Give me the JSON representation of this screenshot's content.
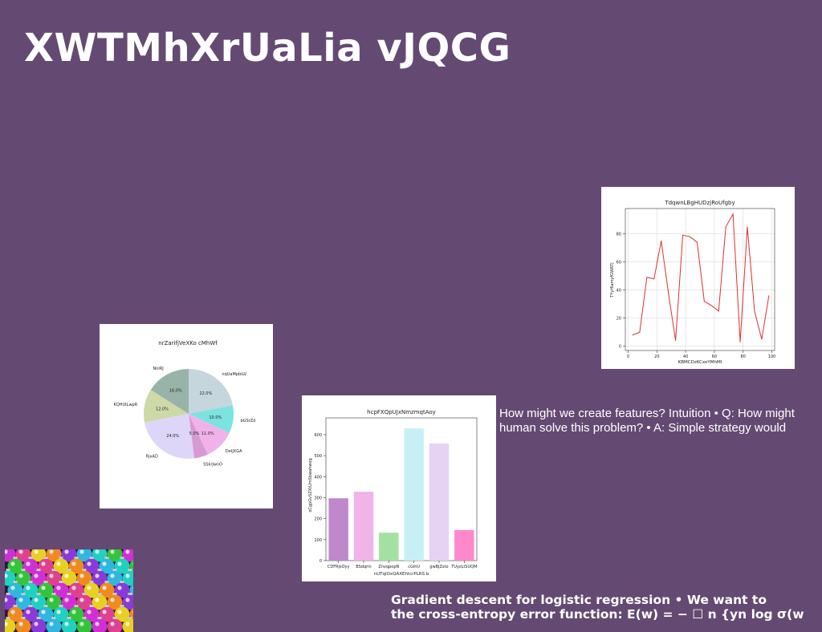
{
  "slide": {
    "title": "XWTMhXrUaLia vJQCG",
    "text_block_1": {
      "line1": "How might we create features? Intuition • Q: How might",
      "line2": "human solve this problem? • A: Simple strategy would"
    },
    "text_block_2": {
      "line1": "Gradient descent for logistic regression • We want to",
      "line2": "the cross-entropy error function: E(w) = − ☐ n {yn log σ(w"
    },
    "image": {
      "icon": "ornaments-photo"
    }
  },
  "chart_data": [
    {
      "type": "pie",
      "title": "nrZarifjVeXKo cMhWf",
      "slices": [
        {
          "label": "nqUaMpbiLV",
          "value": 22.0,
          "color": "#c5d6dc"
        },
        {
          "label": "bGSrZd",
          "value": 10.0,
          "color": "#7be3e0"
        },
        {
          "label": "DeIJXGA",
          "value": 11.0,
          "color": "#f1b2ec"
        },
        {
          "label": "SSkrJwnO",
          "value": 5.0,
          "color": "#d99ad4"
        },
        {
          "label": "RjxAD",
          "value": 24.0,
          "color": "#ddd6f8"
        },
        {
          "label": "KQHUILwpR",
          "value": 12.0,
          "color": "#cdd9a6"
        },
        {
          "label": "NniRJ",
          "value": 16.0,
          "color": "#98b3a8"
        }
      ]
    },
    {
      "type": "bar",
      "title": "hcpFXQpUJxNmzmqtAoy",
      "xlabel": "nUTqiOxQAXEhtcrPLRS b",
      "ylabel": "oCgpGvSZXtUmSbwahwog",
      "categories": [
        "CDFRjsOyy",
        "BSdqrln",
        "ZnvqpopN",
        "cGihU",
        "gwBjZsto",
        "TUyzLtSUQM"
      ],
      "values": [
        297,
        328,
        133,
        630,
        558,
        146
      ],
      "colors": [
        "#bf87cc",
        "#f0b4e8",
        "#a3e1a2",
        "#c6f1f4",
        "#e6d3f3",
        "#ff88cc"
      ],
      "ylim": [
        0,
        680
      ],
      "yticks": [
        0,
        100,
        200,
        300,
        400,
        500,
        600
      ]
    },
    {
      "type": "line",
      "title": "TdqwnLBgHUDzjRoUfgby",
      "xlabel": "KBMCDzKCxoYMhMI",
      "ylabel": "TYyHlamyfGWAT)",
      "x": [
        3,
        8,
        13,
        18,
        23,
        28,
        33,
        38,
        43,
        48,
        53,
        58,
        63,
        68,
        73,
        78,
        83,
        88,
        93,
        98
      ],
      "y": [
        8,
        10,
        49,
        48,
        75,
        38,
        4,
        79,
        78,
        74,
        32,
        29,
        25,
        85,
        94,
        3,
        85,
        25,
        5,
        36
      ],
      "xlim": [
        -2,
        102
      ],
      "ylim": [
        -3,
        98
      ],
      "xticks": [
        0,
        20,
        40,
        60,
        80,
        100
      ],
      "yticks": [
        0,
        20,
        40,
        60,
        80
      ],
      "color": "#e03030",
      "grid": true
    }
  ]
}
